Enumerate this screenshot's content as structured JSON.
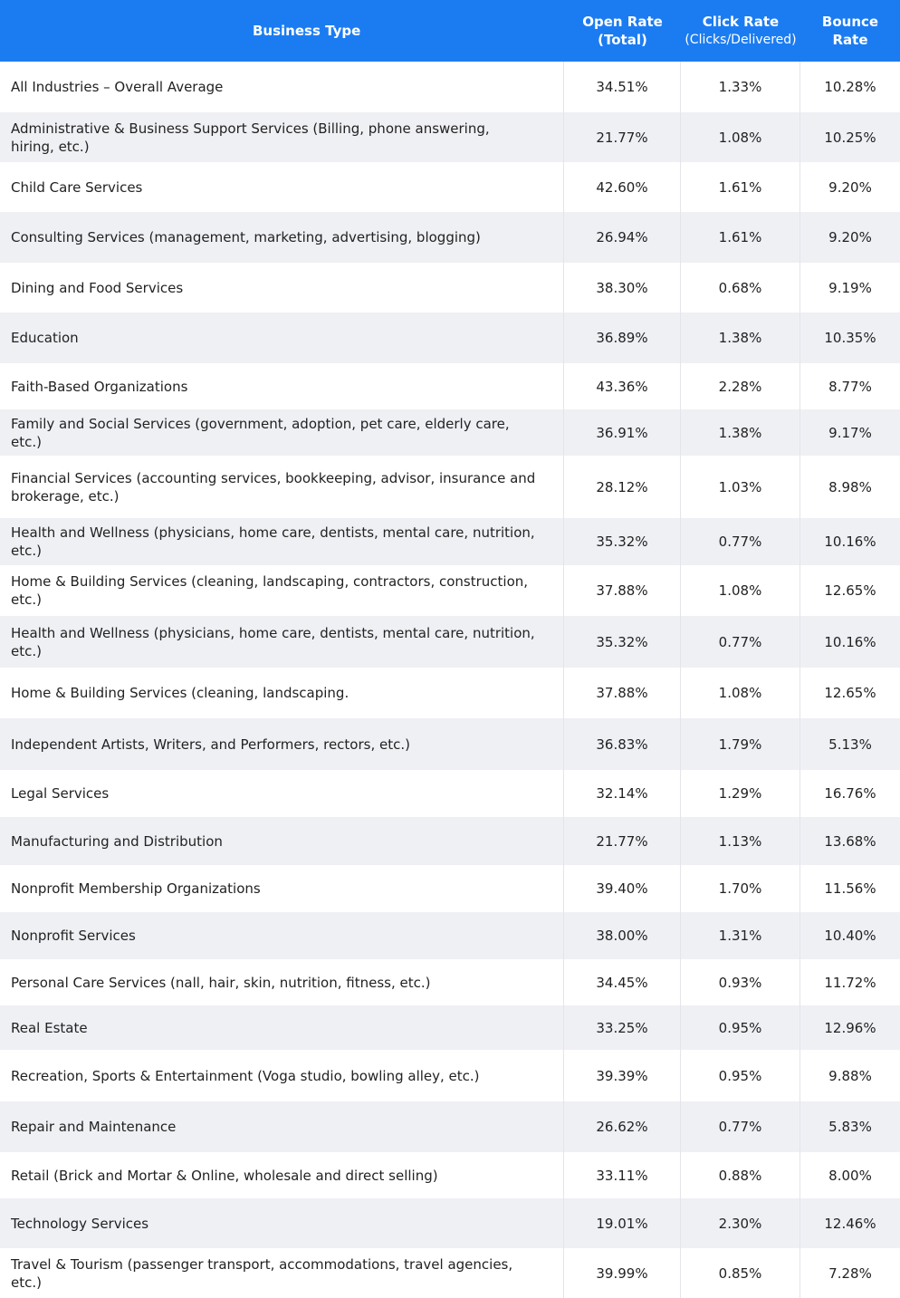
{
  "header": {
    "business_type": "Business Type",
    "open_rate": [
      "Open Rate",
      "(Total)"
    ],
    "click_rate": [
      "Click Rate",
      "(Clicks/Delivered)"
    ],
    "bounce_rate": [
      "Bounce",
      "Rate"
    ]
  },
  "table": {
    "rows": [
      [
        "All Industries – Overall Average",
        "34.51%",
        "1.33%",
        "10.28%"
      ],
      [
        "Administrative & Business Support Services (Billing, phone answering, hiring, etc.)",
        "21.77%",
        "1.08%",
        "10.25%"
      ],
      [
        "Child Care Services",
        "42.60%",
        "1.61%",
        "9.20%"
      ],
      [
        "Consulting Services (management, marketing, advertising, blogging)",
        "26.94%",
        "1.61%",
        "9.20%"
      ],
      [
        "Dining and Food Services",
        "38.30%",
        "0.68%",
        "9.19%"
      ],
      [
        "Education",
        "36.89%",
        "1.38%",
        "10.35%"
      ],
      [
        "Faith-Based Organizations",
        "43.36%",
        "2.28%",
        "8.77%"
      ],
      [
        "Family and Social Services (government, adoption, pet care, elderly care, etc.)",
        "36.91%",
        "1.38%",
        "9.17%"
      ],
      [
        "Financial Services (accounting services, bookkeeping, advisor, insurance and brokerage, etc.)",
        "28.12%",
        "1.03%",
        "8.98%"
      ],
      [
        "Health and Wellness (physicians, home care, dentists, mental care, nutrition, etc.)",
        "35.32%",
        "0.77%",
        "10.16%"
      ],
      [
        "Home & Building Services (cleaning, landscaping, contractors, construction, etc.)",
        "37.88%",
        "1.08%",
        "12.65%"
      ],
      [
        "Health and Wellness (physicians, home care, dentists, mental care, nutrition, etc.)",
        "35.32%",
        "0.77%",
        "10.16%"
      ],
      [
        "Home & Building Services (cleaning, landscaping.",
        "37.88%",
        "1.08%",
        "12.65%"
      ],
      [
        "Independent Artists, Writers, and Performers, rectors, etc.)",
        "36.83%",
        "1.79%",
        "5.13%"
      ],
      [
        "Legal Services",
        "32.14%",
        "1.29%",
        "16.76%"
      ],
      [
        "Manufacturing and Distribution",
        "21.77%",
        "1.13%",
        "13.68%"
      ],
      [
        "Nonprofit Membership Organizations",
        "39.40%",
        "1.70%",
        "11.56%"
      ],
      [
        "Nonprofit Services",
        "38.00%",
        "1.31%",
        "10.40%"
      ],
      [
        "Personal Care Services (nall, hair, skin, nutrition, fitness, etc.)",
        "34.45%",
        "0.93%",
        "11.72%"
      ],
      [
        "Real Estate",
        "33.25%",
        "0.95%",
        "12.96%"
      ],
      [
        "Recreation, Sports & Entertainment (Voga studio, bowling alley, etc.)",
        "39.39%",
        "0.95%",
        "9.88%"
      ],
      [
        "Repair and Maintenance",
        "26.62%",
        "0.77%",
        "5.83%"
      ],
      [
        "Retail (Brick and Mortar & Online, wholesale and direct selling)",
        "33.11%",
        "0.88%",
        "8.00%"
      ],
      [
        "Technology Services",
        "19.01%",
        "2.30%",
        "12.46%"
      ],
      [
        "Travel & Tourism (passenger transport, accommodations, travel agencies, etc.)",
        "39.99%",
        "0.85%",
        "7.28%"
      ]
    ]
  }
}
